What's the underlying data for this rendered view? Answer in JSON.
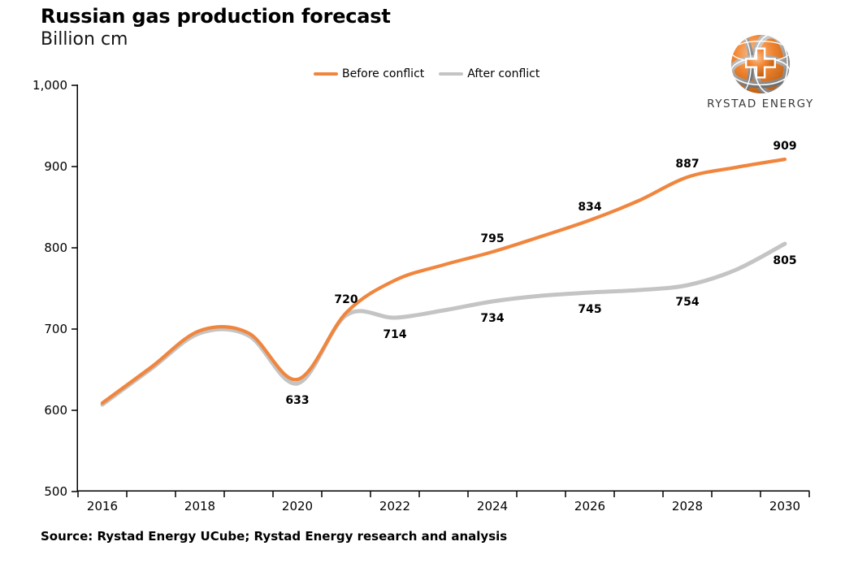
{
  "header": {
    "title": "Russian gas production forecast",
    "subtitle": "Billion cm"
  },
  "legend": {
    "items": [
      {
        "label": "Before conflict",
        "color": "#F0863E"
      },
      {
        "label": "After conflict",
        "color": "#C4C4C4"
      }
    ]
  },
  "logo": {
    "brand": "RYSTAD ENERGY"
  },
  "footer": {
    "source": "Source: Rystad Energy UCube; Rystad Energy research and analysis"
  },
  "chart_data": {
    "type": "line",
    "title": "Russian gas production forecast",
    "ylabel": "Billion cm",
    "x": [
      2016,
      2017,
      2018,
      2019,
      2020,
      2021,
      2022,
      2023,
      2024,
      2025,
      2026,
      2027,
      2028,
      2029,
      2030
    ],
    "xticklabels": [
      2016,
      2018,
      2020,
      2022,
      2024,
      2026,
      2028,
      2030
    ],
    "ylim": [
      500,
      1000
    ],
    "yticks": [
      500,
      600,
      700,
      800,
      900,
      1000
    ],
    "grid": false,
    "legend_position": "top-center",
    "series": [
      {
        "name": "Before conflict",
        "color": "#F0863E",
        "values": [
          609,
          653,
          698,
          695,
          638,
          720,
          760,
          779,
          795,
          814,
          834,
          858,
          887,
          899,
          909
        ],
        "label_position": "above",
        "labeled_points": [
          {
            "x": 2021,
            "value": 720
          },
          {
            "x": 2024,
            "value": 795
          },
          {
            "x": 2026,
            "value": 834
          },
          {
            "x": 2028,
            "value": 887
          },
          {
            "x": 2030,
            "value": 909
          }
        ]
      },
      {
        "name": "After conflict",
        "color": "#C4C4C4",
        "values": [
          607,
          651,
          695,
          692,
          633,
          717,
          714,
          723,
          734,
          741,
          745,
          748,
          754,
          773,
          805
        ],
        "label_position": "below",
        "labeled_points": [
          {
            "x": 2020,
            "value": 633
          },
          {
            "x": 2022,
            "value": 714
          },
          {
            "x": 2024,
            "value": 734
          },
          {
            "x": 2026,
            "value": 745
          },
          {
            "x": 2028,
            "value": 754
          },
          {
            "x": 2030,
            "value": 805
          }
        ]
      }
    ]
  }
}
